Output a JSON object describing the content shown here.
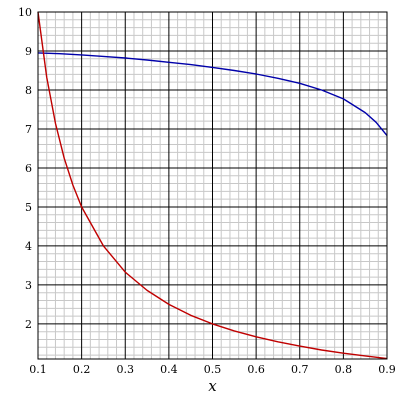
{
  "chart_data": {
    "type": "line",
    "xlabel": "x",
    "ylabel": "",
    "xlim": [
      0.1,
      0.9
    ],
    "ylim": [
      1.1,
      10
    ],
    "grid": true,
    "x_ticks": [
      "0.1",
      "0.2",
      "0.3",
      "0.4",
      "0.5",
      "0.6",
      "0.7",
      "0.8",
      "0.9"
    ],
    "y_ticks": [
      "2",
      "3",
      "4",
      "5",
      "6",
      "7",
      "8",
      "9",
      "10"
    ],
    "colors": {
      "major_grid": "#000000",
      "minor_grid": "#c8c8c8",
      "series_blue": "#0000aa",
      "series_red": "#c00000"
    },
    "series": [
      {
        "color": "#0000aa",
        "x": [
          0.1,
          0.15,
          0.2,
          0.25,
          0.3,
          0.35,
          0.4,
          0.45,
          0.5,
          0.55,
          0.6,
          0.65,
          0.7,
          0.75,
          0.8,
          0.85,
          0.875,
          0.9
        ],
        "y": [
          8.95,
          8.93,
          8.9,
          8.86,
          8.82,
          8.77,
          8.71,
          8.65,
          8.58,
          8.5,
          8.41,
          8.3,
          8.17,
          8.0,
          7.77,
          7.42,
          7.17,
          6.83
        ]
      },
      {
        "color": "#c00000",
        "x": [
          0.1,
          0.12,
          0.14,
          0.16,
          0.18,
          0.2,
          0.25,
          0.3,
          0.35,
          0.4,
          0.45,
          0.5,
          0.55,
          0.6,
          0.65,
          0.7,
          0.75,
          0.8,
          0.85,
          0.9
        ],
        "y": [
          10.0,
          8.33,
          7.14,
          6.25,
          5.56,
          5.0,
          4.0,
          3.33,
          2.86,
          2.5,
          2.22,
          2.0,
          1.82,
          1.67,
          1.54,
          1.43,
          1.33,
          1.25,
          1.18,
          1.11
        ]
      }
    ]
  }
}
